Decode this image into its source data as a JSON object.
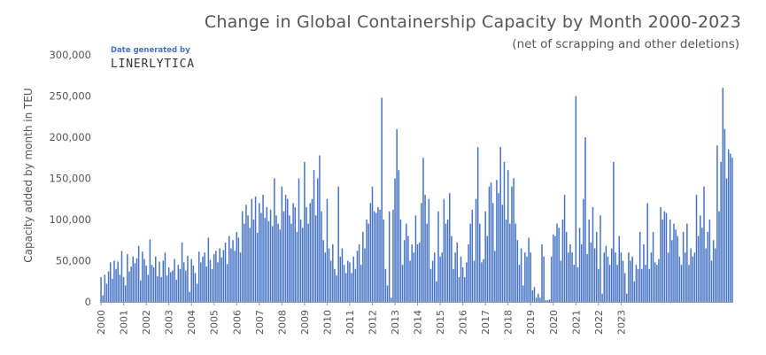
{
  "chart_data": {
    "type": "bar",
    "title": "Change in Global Containership Capacity by Month 2000-2023",
    "subtitle": "(net of scrapping and other deletions)",
    "ylabel": "Capacity added by month in TEU",
    "xlabel": "",
    "ylim": [
      0,
      300000
    ],
    "y_ticks": [
      0,
      50000,
      100000,
      150000,
      200000,
      250000,
      300000
    ],
    "y_tick_labels": [
      "0",
      "50,000",
      "100,000",
      "150,000",
      "200,000",
      "250,000",
      "300,000"
    ],
    "x_tick_labels": [
      "2000",
      "2001",
      "2002",
      "2003",
      "2004",
      "2005",
      "2006",
      "2007",
      "2008",
      "2009",
      "2010",
      "2011",
      "2012",
      "2013",
      "2014",
      "2015",
      "2016",
      "2017",
      "2018",
      "2019",
      "2020",
      "2021",
      "2022",
      "2023"
    ],
    "grid": false,
    "legend": "none",
    "bar_color": "#4472C4",
    "series": [
      {
        "values": [
          30000,
          8000,
          33000,
          22000,
          37000,
          48000,
          28000,
          50000,
          40000,
          49000,
          33000,
          62000,
          30000,
          20000,
          58000,
          37000,
          43000,
          55000,
          47000,
          53000,
          68000,
          26000,
          61000,
          52000,
          44000,
          33000,
          76000,
          45000,
          42000,
          55000,
          31000,
          49000,
          30000,
          50000,
          60000,
          32000,
          42000,
          36000,
          38000,
          52000,
          27000,
          45000,
          40000,
          72000,
          48000,
          38000,
          56000,
          12000,
          52000,
          44000,
          35000,
          22000,
          61000,
          48000,
          55000,
          60000,
          43000,
          78000,
          51000,
          40000,
          58000,
          62000,
          48000,
          65000,
          54000,
          63000,
          72000,
          46000,
          80000,
          65000,
          75000,
          62000,
          85000,
          78000,
          60000,
          110000,
          95000,
          118000,
          105000,
          90000,
          125000,
          100000,
          128000,
          84000,
          120000,
          108000,
          130000,
          102000,
          115000,
          98000,
          112000,
          92000,
          150000,
          105000,
          95000,
          88000,
          140000,
          110000,
          130000,
          125000,
          105000,
          95000,
          120000,
          115000,
          85000,
          150000,
          100000,
          90000,
          170000,
          115000,
          95000,
          120000,
          125000,
          160000,
          105000,
          150000,
          178000,
          110000,
          75000,
          60000,
          125000,
          65000,
          50000,
          70000,
          40000,
          32000,
          140000,
          55000,
          65000,
          45000,
          35000,
          50000,
          48000,
          35000,
          55000,
          40000,
          62000,
          70000,
          45000,
          85000,
          65000,
          100000,
          95000,
          120000,
          140000,
          110000,
          108000,
          115000,
          112000,
          248000,
          100000,
          40000,
          20000,
          110000,
          5000,
          112000,
          150000,
          210000,
          160000,
          100000,
          45000,
          75000,
          95000,
          80000,
          50000,
          70000,
          60000,
          105000,
          70000,
          72000,
          120000,
          175000,
          130000,
          95000,
          125000,
          40000,
          50000,
          60000,
          25000,
          110000,
          55000,
          60000,
          125000,
          95000,
          100000,
          132000,
          80000,
          40000,
          60000,
          72000,
          30000,
          55000,
          42000,
          30000,
          48000,
          70000,
          95000,
          112000,
          50000,
          125000,
          188000,
          95000,
          48000,
          52000,
          110000,
          80000,
          140000,
          145000,
          120000,
          62000,
          148000,
          132000,
          188000,
          118000,
          170000,
          100000,
          160000,
          95000,
          140000,
          150000,
          95000,
          75000,
          45000,
          65000,
          20000,
          60000,
          55000,
          78000,
          60000,
          14000,
          18000,
          5000,
          10000,
          5000,
          70000,
          55000,
          2000,
          2000,
          3000,
          55000,
          82000,
          80000,
          95000,
          90000,
          50000,
          100000,
          130000,
          85000,
          60000,
          70000,
          60000,
          45000,
          250000,
          42000,
          90000,
          70000,
          125000,
          200000,
          58000,
          100000,
          72000,
          115000,
          65000,
          85000,
          40000,
          105000,
          10000,
          60000,
          68000,
          55000,
          45000,
          65000,
          170000,
          60000,
          45000,
          80000,
          60000,
          50000,
          35000,
          10000,
          60000,
          50000,
          55000,
          25000,
          45000,
          40000,
          85000,
          40000,
          70000,
          45000,
          120000,
          40000,
          60000,
          85000,
          48000,
          45000,
          52000,
          115000,
          100000,
          110000,
          108000,
          60000,
          100000,
          75000,
          95000,
          88000,
          80000,
          55000,
          45000,
          85000,
          60000,
          95000,
          45000,
          65000,
          55000,
          60000,
          130000,
          80000,
          105000,
          90000,
          140000,
          65000,
          85000,
          100000,
          50000,
          75000,
          65000,
          190000,
          110000,
          170000,
          260000,
          210000,
          150000,
          185000,
          180000,
          175000
        ]
      }
    ]
  }
}
